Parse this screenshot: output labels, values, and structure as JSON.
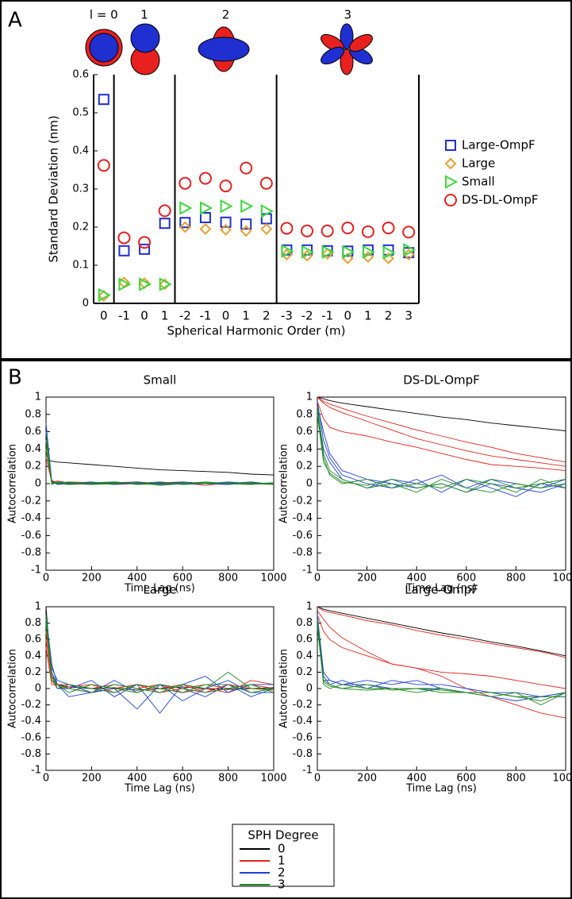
{
  "panel_labels": [
    "A",
    "B"
  ],
  "shared_legend": {
    "title": "SPH Degree",
    "labels": [
      "0",
      "1",
      "2",
      "3"
    ],
    "colors": [
      "#000000",
      "#e8231c",
      "#1f3fd8",
      "#1c8a1c"
    ]
  },
  "chart_data": [
    {
      "type": "scatter",
      "ylabel": "Standard Deviation (nm)",
      "xlabel": "Spherical Harmonic Order (m)",
      "group_labels": [
        "l = 0",
        "1",
        "2",
        "3"
      ],
      "group_sizes": [
        1,
        3,
        5,
        7
      ],
      "categories": [
        "0",
        "-1",
        "0",
        "1",
        "-2",
        "-1",
        "0",
        "1",
        "2",
        "-3",
        "-2",
        "-1",
        "0",
        "1",
        "2",
        "3"
      ],
      "ylim": [
        0,
        0.6
      ],
      "yticks": [
        0,
        0.1,
        0.2,
        0.3,
        0.4,
        0.5,
        0.6
      ],
      "series": [
        {
          "name": "Large-OmpF",
          "color": "#1f2fd0",
          "marker": "square",
          "values": [
            0.535,
            0.138,
            0.142,
            0.21,
            0.212,
            0.225,
            0.213,
            0.208,
            0.222,
            0.14,
            0.14,
            0.138,
            0.137,
            0.14,
            0.14,
            0.133
          ]
        },
        {
          "name": "Large",
          "color": "#e8a030",
          "marker": "diamond",
          "values": [
            0.02,
            0.055,
            0.053,
            0.05,
            0.2,
            0.195,
            0.193,
            0.19,
            0.195,
            0.128,
            0.125,
            0.13,
            0.118,
            0.122,
            0.118,
            0.128
          ]
        },
        {
          "name": "Small",
          "color": "#3cd83c",
          "marker": "triangle",
          "values": [
            0.022,
            0.05,
            0.05,
            0.05,
            0.25,
            0.25,
            0.255,
            0.255,
            0.242,
            0.137,
            0.135,
            0.135,
            0.135,
            0.135,
            0.133,
            0.14
          ]
        },
        {
          "name": "DS-DL-OmpF",
          "color": "#e82020",
          "marker": "circle",
          "values": [
            0.362,
            0.172,
            0.16,
            0.243,
            0.315,
            0.328,
            0.308,
            0.355,
            0.315,
            0.197,
            0.19,
            0.19,
            0.198,
            0.188,
            0.198,
            0.187
          ]
        }
      ]
    },
    {
      "type": "line",
      "title": "Small",
      "xlabel": "Time Lag (ns)",
      "ylabel": "Autocorrelation",
      "x": [
        0,
        25,
        50,
        100,
        200,
        300,
        400,
        500,
        600,
        700,
        800,
        900,
        1000
      ],
      "xlim": [
        0,
        1000
      ],
      "xticks": [
        0,
        200,
        400,
        600,
        800,
        1000
      ],
      "ylim": [
        -1,
        1
      ],
      "yticks": [
        -1,
        -0.8,
        -0.6,
        -0.4,
        -0.2,
        0,
        0.2,
        0.4,
        0.6,
        0.8,
        1
      ],
      "series": [
        {
          "lines": [
            [
              0.28,
              0.26,
              0.25,
              0.24,
              0.22,
              0.2,
              0.18,
              0.16,
              0.15,
              0.14,
              0.13,
              0.11,
              0.1
            ]
          ]
        },
        {
          "lines": [
            [
              0.3,
              0.02,
              0.03,
              0.01,
              0.0,
              0.02,
              -0.01,
              0.01,
              0.02,
              0.0,
              -0.01,
              0.01,
              0.0
            ],
            [
              0.5,
              0.04,
              0.0,
              0.02,
              0.01,
              -0.01,
              0.0,
              0.02,
              0.0,
              0.01,
              0.0,
              -0.01,
              0.01
            ],
            [
              0.4,
              0.01,
              0.02,
              0.0,
              -0.01,
              0.01,
              0.02,
              0.0,
              0.01,
              -0.02,
              0.01,
              0.0,
              0.0
            ]
          ]
        },
        {
          "lines": [
            [
              0.7,
              0.03,
              0.0,
              -0.01,
              0.01,
              0.0,
              0.02,
              -0.01,
              0.0,
              0.01,
              0.0,
              0.02,
              -0.01
            ],
            [
              0.6,
              0.0,
              0.02,
              0.01,
              -0.01,
              0.02,
              0.0,
              0.01,
              -0.01,
              0.0,
              0.02,
              0.0,
              0.01
            ],
            [
              0.5,
              0.02,
              -0.01,
              0.0,
              0.02,
              -0.01,
              0.01,
              0.0,
              0.02,
              0.0,
              -0.01,
              0.01,
              0.0
            ]
          ]
        },
        {
          "lines": [
            [
              0.6,
              0.01,
              0.0,
              0.02,
              -0.01,
              0.0,
              0.01,
              -0.02,
              0.0,
              0.02,
              0.0,
              -0.01,
              0.01
            ],
            [
              0.5,
              -0.01,
              0.02,
              0.0,
              0.01,
              0.02,
              -0.01,
              0.0,
              0.01,
              0.0,
              0.01,
              0.0,
              -0.01
            ],
            [
              0.4,
              0.02,
              0.01,
              -0.01,
              0.0,
              0.01,
              0.0,
              0.02,
              -0.01,
              0.01,
              0.0,
              0.01,
              0.0
            ]
          ]
        }
      ]
    },
    {
      "type": "line",
      "title": "DS-DL-OmpF",
      "xlabel": "Time Lag (ns)",
      "ylabel": "Autocorrelation",
      "x": [
        0,
        25,
        50,
        100,
        200,
        300,
        400,
        500,
        600,
        700,
        800,
        900,
        1000
      ],
      "xlim": [
        0,
        1000
      ],
      "xticks": [
        0,
        200,
        400,
        600,
        800,
        1000
      ],
      "ylim": [
        -1,
        1
      ],
      "yticks": [
        -1,
        -0.8,
        -0.6,
        -0.4,
        -0.2,
        0,
        0.2,
        0.4,
        0.6,
        0.8,
        1
      ],
      "series": [
        {
          "lines": [
            [
              1,
              0.98,
              0.96,
              0.93,
              0.89,
              0.85,
              0.81,
              0.77,
              0.74,
              0.7,
              0.67,
              0.64,
              0.61
            ]
          ]
        },
        {
          "lines": [
            [
              1,
              0.95,
              0.92,
              0.87,
              0.78,
              0.7,
              0.62,
              0.55,
              0.48,
              0.42,
              0.35,
              0.3,
              0.25
            ],
            [
              1,
              0.93,
              0.88,
              0.82,
              0.72,
              0.62,
              0.52,
              0.45,
              0.38,
              0.32,
              0.28,
              0.24,
              0.2
            ],
            [
              0.95,
              0.75,
              0.65,
              0.6,
              0.55,
              0.48,
              0.42,
              0.35,
              0.28,
              0.22,
              0.2,
              0.18,
              0.15
            ]
          ]
        },
        {
          "lines": [
            [
              0.95,
              0.5,
              0.3,
              0.1,
              0.0,
              -0.05,
              0.05,
              -0.1,
              0.05,
              -0.05,
              -0.15,
              0.0,
              -0.05
            ],
            [
              0.9,
              0.6,
              0.35,
              0.15,
              0.05,
              0.0,
              -0.05,
              0.0,
              -0.1,
              0.0,
              -0.05,
              -0.1,
              0.0
            ],
            [
              0.85,
              0.4,
              0.25,
              0.05,
              -0.05,
              0.05,
              0.0,
              0.1,
              -0.05,
              0.05,
              0.0,
              -0.05,
              0.05
            ]
          ]
        },
        {
          "lines": [
            [
              0.9,
              0.35,
              0.15,
              0.05,
              -0.05,
              0.0,
              -0.1,
              0.05,
              -0.05,
              -0.1,
              0.0,
              -0.05,
              0.0
            ],
            [
              0.85,
              0.3,
              0.1,
              0.0,
              0.05,
              -0.05,
              0.0,
              -0.05,
              0.05,
              0.0,
              -0.1,
              0.05,
              -0.05
            ],
            [
              0.8,
              0.25,
              0.12,
              0.02,
              -0.02,
              0.05,
              -0.05,
              0.0,
              -0.1,
              0.05,
              -0.05,
              0.0,
              0.05
            ]
          ]
        }
      ]
    },
    {
      "type": "line",
      "title": "Large",
      "xlabel": "Time Lag (ns)",
      "ylabel": "Autocorrelation",
      "x": [
        0,
        25,
        50,
        100,
        200,
        300,
        400,
        500,
        600,
        700,
        800,
        900,
        1000
      ],
      "xlim": [
        0,
        1000
      ],
      "xticks": [
        0,
        200,
        400,
        600,
        800,
        1000
      ],
      "ylim": [
        -1,
        1
      ],
      "yticks": [
        -1,
        -0.8,
        -0.6,
        -0.4,
        -0.2,
        0,
        0.2,
        0.4,
        0.6,
        0.8,
        1
      ],
      "series": [
        {
          "lines": [
            [
              1,
              0.1,
              0.05,
              0.02,
              0.0,
              0.01,
              -0.02,
              0.0,
              0.02,
              0.0,
              -0.01,
              0.0,
              0.01
            ]
          ]
        },
        {
          "lines": [
            [
              0.7,
              0.15,
              0.05,
              0.05,
              0.0,
              0.05,
              0.0,
              0.05,
              -0.05,
              0.0,
              -0.05,
              0.1,
              0.05
            ],
            [
              0.6,
              0.1,
              0.0,
              0.02,
              0.05,
              -0.05,
              0.05,
              0.0,
              0.05,
              -0.05,
              0.05,
              0.0,
              -0.02
            ],
            [
              0.5,
              0.05,
              0.05,
              0.0,
              -0.05,
              0.0,
              0.05,
              -0.05,
              0.0,
              0.05,
              0.0,
              0.05,
              0.0
            ]
          ]
        },
        {
          "lines": [
            [
              0.9,
              0.3,
              0.05,
              -0.1,
              -0.05,
              0.0,
              -0.25,
              0.05,
              0.0,
              -0.1,
              0.05,
              -0.1,
              0.0
            ],
            [
              0.85,
              0.2,
              0.0,
              0.0,
              0.1,
              -0.1,
              0.05,
              -0.3,
              0.05,
              0.15,
              -0.05,
              0.05,
              0.05
            ],
            [
              0.8,
              0.25,
              0.1,
              0.05,
              -0.05,
              0.1,
              -0.05,
              0.05,
              -0.15,
              0.0,
              0.1,
              -0.05,
              -0.05
            ]
          ]
        },
        {
          "lines": [
            [
              0.9,
              0.2,
              0.05,
              0.0,
              -0.05,
              0.05,
              0.0,
              -0.05,
              0.05,
              0.0,
              0.2,
              0.0,
              0.0
            ],
            [
              0.85,
              0.15,
              0.0,
              0.05,
              0.0,
              -0.05,
              0.05,
              0.0,
              -0.05,
              0.05,
              0.05,
              -0.05,
              0.0
            ],
            [
              0.8,
              0.1,
              0.05,
              -0.05,
              0.05,
              0.0,
              -0.05,
              0.05,
              0.0,
              -0.05,
              0.0,
              0.05,
              -0.05
            ]
          ]
        }
      ]
    },
    {
      "type": "line",
      "title": "Large-OmpF",
      "xlabel": "Time Lag (ns)",
      "ylabel": "Autocorrelation",
      "x": [
        0,
        25,
        50,
        100,
        200,
        300,
        400,
        500,
        600,
        700,
        800,
        900,
        1000
      ],
      "xlim": [
        0,
        1000
      ],
      "xticks": [
        0,
        200,
        400,
        600,
        800,
        1000
      ],
      "ylim": [
        -1,
        1
      ],
      "yticks": [
        -1,
        -0.8,
        -0.6,
        -0.4,
        -0.2,
        0,
        0.2,
        0.4,
        0.6,
        0.8,
        1
      ],
      "series": [
        {
          "lines": [
            [
              1,
              0.97,
              0.95,
              0.92,
              0.86,
              0.8,
              0.74,
              0.68,
              0.63,
              0.57,
              0.52,
              0.46,
              0.4
            ]
          ]
        },
        {
          "lines": [
            [
              1,
              0.95,
              0.93,
              0.9,
              0.83,
              0.78,
              0.71,
              0.65,
              0.6,
              0.55,
              0.5,
              0.45,
              0.38
            ],
            [
              0.95,
              0.85,
              0.75,
              0.62,
              0.45,
              0.3,
              0.25,
              0.15,
              0.0,
              -0.1,
              -0.2,
              -0.3,
              -0.36
            ],
            [
              0.9,
              0.7,
              0.6,
              0.5,
              0.4,
              0.3,
              0.25,
              0.2,
              0.18,
              0.15,
              0.1,
              0.05,
              0.0
            ]
          ]
        },
        {
          "lines": [
            [
              0.9,
              0.2,
              0.1,
              0.05,
              0.1,
              0.05,
              0.1,
              0.0,
              -0.05,
              -0.1,
              -0.15,
              -0.1,
              -0.1
            ],
            [
              0.85,
              0.15,
              0.05,
              0.1,
              0.0,
              0.1,
              0.05,
              0.05,
              0.0,
              -0.05,
              -0.1,
              -0.1,
              -0.05
            ],
            [
              0.8,
              0.1,
              0.1,
              0.05,
              0.05,
              0.0,
              0.0,
              0.0,
              -0.05,
              -0.05,
              -0.05,
              -0.1,
              -0.05
            ]
          ]
        },
        {
          "lines": [
            [
              0.85,
              0.1,
              0.05,
              0.0,
              0.05,
              -0.02,
              0.0,
              -0.05,
              -0.05,
              -0.05,
              -0.1,
              -0.15,
              -0.05
            ],
            [
              0.8,
              0.05,
              0.0,
              0.05,
              0.0,
              0.0,
              -0.05,
              0.0,
              -0.05,
              -0.1,
              -0.05,
              -0.2,
              -0.05
            ],
            [
              0.75,
              0.08,
              0.03,
              0.0,
              -0.02,
              0.0,
              0.0,
              -0.02,
              -0.05,
              -0.05,
              -0.1,
              -0.1,
              -0.1
            ]
          ]
        }
      ]
    }
  ]
}
